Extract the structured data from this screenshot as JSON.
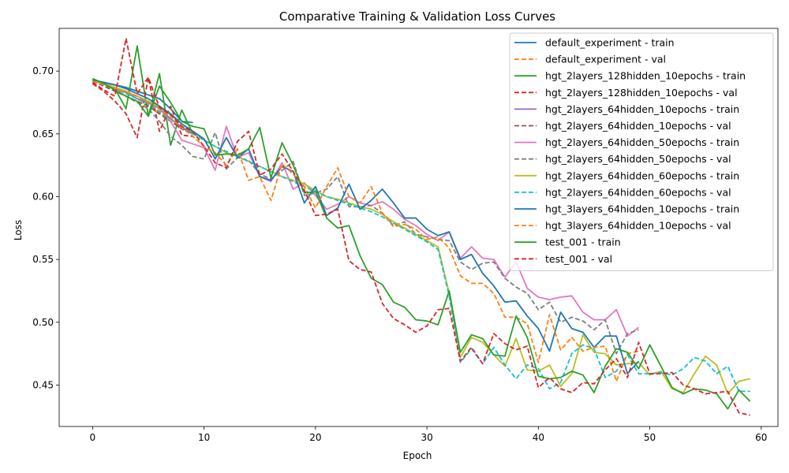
{
  "chart_data": {
    "type": "line",
    "title": "Comparative Training & Validation Loss Curves",
    "xlabel": "Epoch",
    "ylabel": "Loss",
    "xlim": [
      -3,
      61.5
    ],
    "ylim": [
      0.417,
      0.734
    ],
    "xticks": [
      0,
      10,
      20,
      30,
      40,
      50,
      60
    ],
    "yticks": [
      0.45,
      0.5,
      0.55,
      0.6,
      0.65,
      0.7
    ],
    "ytick_labels": [
      "0.45",
      "0.50",
      "0.55",
      "0.60",
      "0.65",
      "0.70"
    ],
    "grid": false,
    "legend_position": "top-right",
    "series": [
      {
        "name": "default_experiment - train",
        "color": "#1f77b4",
        "dash": "solid",
        "x": [
          0,
          1,
          2,
          3,
          4,
          5,
          6,
          7,
          8,
          9
        ],
        "y": [
          0.693,
          0.691,
          0.689,
          0.687,
          0.684,
          0.681,
          0.678,
          0.67,
          0.66,
          0.659
        ]
      },
      {
        "name": "default_experiment - val",
        "color": "#ff7f0e",
        "dash": "dashed",
        "x": [
          0,
          1,
          2,
          3,
          4,
          5,
          6,
          7,
          8,
          9
        ],
        "y": [
          0.692,
          0.69,
          0.687,
          0.683,
          0.678,
          0.673,
          0.667,
          0.66,
          0.655,
          0.651
        ]
      },
      {
        "name": "hgt_2layers_128hidden_10epochs - train",
        "color": "#2ca02c",
        "dash": "solid",
        "x": [
          0,
          1,
          2,
          3,
          4,
          5,
          6,
          7,
          8,
          9
        ],
        "y": [
          0.694,
          0.69,
          0.686,
          0.67,
          0.72,
          0.664,
          0.698,
          0.641,
          0.669,
          0.65
        ]
      },
      {
        "name": "hgt_2layers_128hidden_10epochs - val",
        "color": "#d62728",
        "dash": "dashed",
        "x": [
          0,
          1,
          2,
          3,
          4,
          5,
          6,
          7,
          8,
          9
        ],
        "y": [
          0.69,
          0.684,
          0.676,
          0.666,
          0.647,
          0.695,
          0.652,
          0.672,
          0.649,
          0.648
        ]
      },
      {
        "name": "hgt_2layers_64hidden_10epochs - train",
        "color": "#9467bd",
        "dash": "solid",
        "x": [
          0,
          1,
          2,
          3,
          4,
          5,
          6,
          7,
          8,
          9
        ],
        "y": [
          0.693,
          0.69,
          0.686,
          0.683,
          0.678,
          0.675,
          0.67,
          0.662,
          0.655,
          0.65
        ]
      },
      {
        "name": "hgt_2layers_64hidden_10epochs - val",
        "color": "#8c564b",
        "dash": "dashed",
        "x": [
          0,
          1,
          2,
          3,
          4,
          5,
          6,
          7,
          8,
          9
        ],
        "y": [
          0.692,
          0.688,
          0.684,
          0.68,
          0.676,
          0.672,
          0.666,
          0.66,
          0.654,
          0.65
        ]
      },
      {
        "name": "hgt_2layers_64hidden_50epochs - train",
        "color": "#e377c2",
        "dash": "solid",
        "x": [
          0,
          1,
          2,
          3,
          4,
          5,
          6,
          7,
          8,
          9,
          10,
          11,
          12,
          13,
          14,
          15,
          16,
          17,
          18,
          19,
          20,
          21,
          22,
          23,
          24,
          25,
          26,
          27,
          28,
          29,
          30,
          31,
          32,
          33,
          34,
          35,
          36,
          37,
          38,
          39,
          40,
          41,
          42,
          43,
          44,
          45,
          46,
          47,
          48,
          49
        ],
        "y": [
          0.692,
          0.69,
          0.687,
          0.684,
          0.68,
          0.676,
          0.67,
          0.66,
          0.645,
          0.642,
          0.639,
          0.621,
          0.656,
          0.631,
          0.635,
          0.616,
          0.612,
          0.627,
          0.606,
          0.611,
          0.601,
          0.59,
          0.594,
          0.6,
          0.595,
          0.593,
          0.596,
          0.59,
          0.582,
          0.577,
          0.57,
          0.565,
          0.572,
          0.551,
          0.56,
          0.551,
          0.55,
          0.536,
          0.548,
          0.527,
          0.52,
          0.518,
          0.52,
          0.521,
          0.508,
          0.502,
          0.502,
          0.51,
          0.489,
          0.496
        ]
      },
      {
        "name": "hgt_2layers_64hidden_50epochs - val",
        "color": "#7f7f7f",
        "dash": "dashed",
        "x": [
          0,
          1,
          2,
          3,
          4,
          5,
          6,
          7,
          8,
          9,
          10,
          11,
          12,
          13,
          14,
          15,
          16,
          17,
          18,
          19,
          20,
          21,
          22,
          23,
          24,
          25,
          26,
          27,
          28,
          29,
          30,
          31,
          32,
          33,
          34,
          35,
          36,
          37,
          38,
          39,
          40,
          41,
          42,
          43,
          44,
          45,
          46,
          47,
          48,
          49
        ],
        "y": [
          0.693,
          0.689,
          0.685,
          0.68,
          0.675,
          0.67,
          0.66,
          0.648,
          0.641,
          0.632,
          0.63,
          0.651,
          0.622,
          0.631,
          0.629,
          0.618,
          0.614,
          0.621,
          0.628,
          0.601,
          0.603,
          0.606,
          0.616,
          0.592,
          0.592,
          0.593,
          0.587,
          0.577,
          0.58,
          0.57,
          0.568,
          0.566,
          0.565,
          0.548,
          0.542,
          0.547,
          0.548,
          0.535,
          0.528,
          0.523,
          0.51,
          0.516,
          0.5,
          0.504,
          0.501,
          0.494,
          0.502,
          0.475,
          0.491,
          0.494
        ]
      },
      {
        "name": "hgt_2layers_64hidden_60epochs - train",
        "color": "#bcbd22",
        "dash": "solid",
        "x": [
          0,
          1,
          2,
          3,
          4,
          5,
          6,
          7,
          8,
          9,
          10,
          11,
          12,
          13,
          14,
          15,
          16,
          17,
          18,
          19,
          20,
          21,
          22,
          23,
          24,
          25,
          26,
          27,
          28,
          29,
          30,
          31,
          32,
          33,
          34,
          35,
          36,
          37,
          38,
          39,
          40,
          41,
          42,
          43,
          44,
          45,
          46,
          47,
          48,
          49,
          50,
          51,
          52,
          53,
          54,
          55,
          56,
          57,
          58,
          59
        ],
        "y": [
          0.692,
          0.69,
          0.687,
          0.684,
          0.68,
          0.676,
          0.671,
          0.665,
          0.658,
          0.652,
          0.645,
          0.64,
          0.635,
          0.632,
          0.628,
          0.624,
          0.62,
          0.616,
          0.613,
          0.61,
          0.605,
          0.6,
          0.598,
          0.595,
          0.592,
          0.59,
          0.586,
          0.58,
          0.575,
          0.57,
          0.565,
          0.56,
          0.523,
          0.472,
          0.488,
          0.484,
          0.474,
          0.465,
          0.487,
          0.462,
          0.461,
          0.466,
          0.449,
          0.459,
          0.49,
          0.476,
          0.475,
          0.466,
          0.467,
          0.468,
          0.458,
          0.461,
          0.447,
          0.444,
          0.459,
          0.473,
          0.466,
          0.443,
          0.453,
          0.455
        ]
      },
      {
        "name": "hgt_2layers_64hidden_60epochs - val",
        "color": "#17becf",
        "dash": "dashed",
        "x": [
          0,
          1,
          2,
          3,
          4,
          5,
          6,
          7,
          8,
          9,
          10,
          11,
          12,
          13,
          14,
          15,
          16,
          17,
          18,
          19,
          20,
          21,
          22,
          23,
          24,
          25,
          26,
          27,
          28,
          29,
          30,
          31,
          32,
          33,
          34,
          35,
          36,
          37,
          38,
          39,
          40,
          41,
          42,
          43,
          44,
          45,
          46,
          47,
          48,
          49,
          50,
          51,
          52,
          53,
          54,
          55,
          56,
          57,
          58,
          59
        ],
        "y": [
          0.692,
          0.689,
          0.686,
          0.682,
          0.678,
          0.674,
          0.668,
          0.662,
          0.656,
          0.65,
          0.645,
          0.64,
          0.636,
          0.632,
          0.628,
          0.624,
          0.62,
          0.616,
          0.612,
          0.608,
          0.604,
          0.6,
          0.597,
          0.594,
          0.591,
          0.588,
          0.584,
          0.579,
          0.574,
          0.569,
          0.564,
          0.558,
          0.521,
          0.468,
          0.479,
          0.467,
          0.48,
          0.466,
          0.455,
          0.466,
          0.463,
          0.447,
          0.452,
          0.475,
          0.482,
          0.479,
          0.456,
          0.461,
          0.474,
          0.459,
          0.459,
          0.46,
          0.458,
          0.463,
          0.472,
          0.469,
          0.459,
          0.465,
          0.445,
          0.445
        ]
      },
      {
        "name": "hgt_3layers_64hidden_10epochs - train",
        "color": "#1f77b4",
        "dash": "solid",
        "x": [
          0,
          1,
          2,
          3,
          4,
          5,
          6,
          7,
          8,
          9,
          10,
          11,
          12,
          13,
          14,
          15,
          16,
          17,
          18,
          19,
          20,
          21,
          22,
          23,
          24,
          25,
          26,
          27,
          28,
          29,
          30,
          31,
          32,
          33,
          34,
          35,
          36,
          37,
          38,
          39,
          40,
          41,
          42,
          43,
          44,
          45,
          46,
          47,
          48,
          49
        ],
        "y": [
          0.693,
          0.691,
          0.689,
          0.686,
          0.682,
          0.678,
          0.672,
          0.666,
          0.658,
          0.652,
          0.646,
          0.63,
          0.647,
          0.631,
          0.638,
          0.616,
          0.613,
          0.624,
          0.62,
          0.595,
          0.608,
          0.585,
          0.591,
          0.61,
          0.59,
          0.597,
          0.606,
          0.595,
          0.583,
          0.583,
          0.574,
          0.569,
          0.572,
          0.55,
          0.554,
          0.539,
          0.529,
          0.516,
          0.517,
          0.505,
          0.495,
          0.477,
          0.508,
          0.495,
          0.492,
          0.48,
          0.489,
          0.489,
          0.459,
          0.469
        ]
      },
      {
        "name": "hgt_3layers_64hidden_10epochs - val",
        "color": "#ff7f0e",
        "dash": "dashed",
        "x": [
          0,
          1,
          2,
          3,
          4,
          5,
          6,
          7,
          8,
          9,
          10,
          11,
          12,
          13,
          14,
          15,
          16,
          17,
          18,
          19,
          20,
          21,
          22,
          23,
          24,
          25,
          26,
          27,
          28,
          29,
          30,
          31,
          32,
          33,
          34,
          35,
          36,
          37,
          38,
          39,
          40,
          41,
          42,
          43,
          44,
          45,
          46,
          47,
          48,
          49
        ],
        "y": [
          0.692,
          0.689,
          0.686,
          0.683,
          0.68,
          0.675,
          0.67,
          0.663,
          0.655,
          0.648,
          0.64,
          0.635,
          0.625,
          0.638,
          0.613,
          0.616,
          0.597,
          0.626,
          0.618,
          0.608,
          0.591,
          0.608,
          0.623,
          0.6,
          0.595,
          0.608,
          0.587,
          0.576,
          0.578,
          0.574,
          0.566,
          0.568,
          0.559,
          0.537,
          0.531,
          0.531,
          0.523,
          0.504,
          0.504,
          0.499,
          0.468,
          0.506,
          0.478,
          0.488,
          0.477,
          0.48,
          0.481,
          0.453,
          0.475,
          0.477
        ]
      },
      {
        "name": "test_001 - train",
        "color": "#2ca02c",
        "dash": "solid",
        "x": [
          0,
          1,
          2,
          3,
          4,
          5,
          6,
          7,
          8,
          9,
          10,
          11,
          12,
          13,
          14,
          15,
          16,
          17,
          18,
          19,
          20,
          21,
          22,
          23,
          24,
          25,
          26,
          27,
          28,
          29,
          30,
          31,
          32,
          33,
          34,
          35,
          36,
          37,
          38,
          39,
          40,
          41,
          42,
          43,
          44,
          45,
          46,
          47,
          48,
          49,
          50,
          51,
          52,
          53,
          54,
          55,
          56,
          57,
          58,
          59
        ],
        "y": [
          0.694,
          0.69,
          0.685,
          0.68,
          0.676,
          0.664,
          0.688,
          0.675,
          0.66,
          0.656,
          0.654,
          0.633,
          0.634,
          0.633,
          0.638,
          0.655,
          0.615,
          0.643,
          0.625,
          0.603,
          0.604,
          0.583,
          0.575,
          0.577,
          0.553,
          0.535,
          0.53,
          0.516,
          0.512,
          0.502,
          0.501,
          0.498,
          0.525,
          0.476,
          0.49,
          0.487,
          0.474,
          0.473,
          0.505,
          0.488,
          0.457,
          0.455,
          0.456,
          0.461,
          0.458,
          0.444,
          0.465,
          0.479,
          0.476,
          0.463,
          0.482,
          0.465,
          0.448,
          0.443,
          0.447,
          0.446,
          0.443,
          0.431,
          0.446,
          0.437
        ]
      },
      {
        "name": "test_001 - val",
        "color": "#d62728",
        "dash": "dashed",
        "x": [
          0,
          1,
          2,
          3,
          4,
          5,
          6,
          7,
          8,
          9,
          10,
          11,
          12,
          13,
          14,
          15,
          16,
          17,
          18,
          19,
          20,
          21,
          22,
          23,
          24,
          25,
          26,
          27,
          28,
          29,
          30,
          31,
          32,
          33,
          34,
          35,
          36,
          37,
          38,
          39,
          40,
          41,
          42,
          43,
          44,
          45,
          46,
          47,
          48,
          49,
          50,
          51,
          52,
          53,
          54,
          55,
          56,
          57,
          58,
          59
        ],
        "y": [
          0.691,
          0.685,
          0.68,
          0.726,
          0.682,
          0.695,
          0.671,
          0.665,
          0.656,
          0.652,
          0.64,
          0.627,
          0.623,
          0.644,
          0.652,
          0.617,
          0.622,
          0.634,
          0.62,
          0.605,
          0.585,
          0.586,
          0.59,
          0.549,
          0.542,
          0.54,
          0.515,
          0.503,
          0.498,
          0.492,
          0.497,
          0.51,
          0.511,
          0.469,
          0.48,
          0.467,
          0.491,
          0.483,
          0.478,
          0.481,
          0.448,
          0.456,
          0.447,
          0.444,
          0.452,
          0.451,
          0.462,
          0.471,
          0.456,
          0.484,
          0.459,
          0.459,
          0.46,
          0.45,
          0.447,
          0.443,
          0.444,
          0.445,
          0.428,
          0.426
        ]
      }
    ]
  }
}
